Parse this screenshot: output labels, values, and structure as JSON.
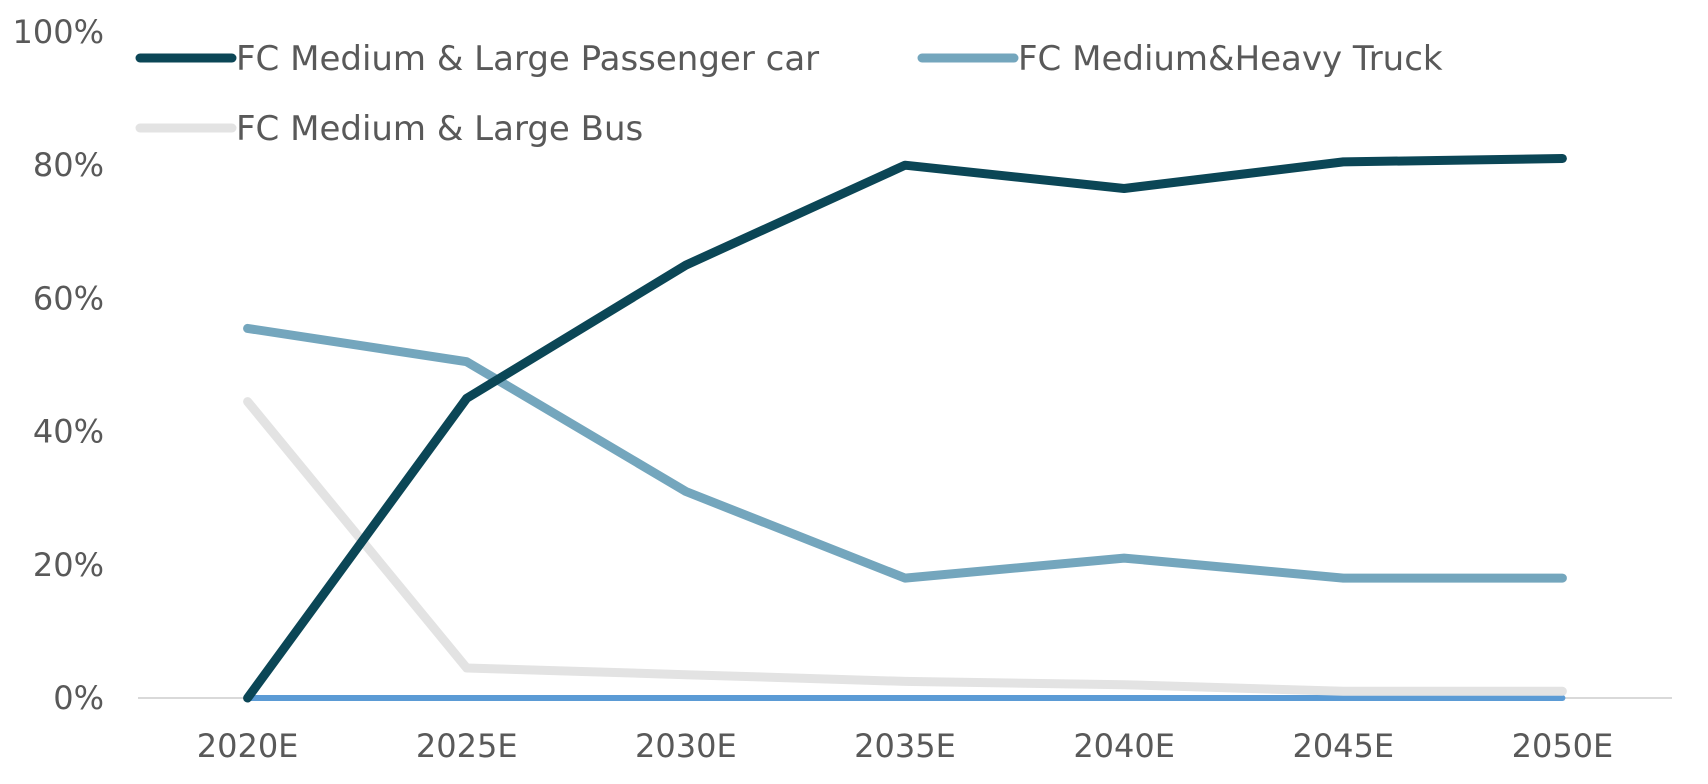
{
  "chart_data": {
    "type": "line",
    "categories": [
      "2020E",
      "2025E",
      "2030E",
      "2035E",
      "2040E",
      "2045E",
      "2050E"
    ],
    "series": [
      {
        "name": "FC Medium & Large Passenger car",
        "values": [
          0,
          45,
          65,
          80,
          76.5,
          80.5,
          81
        ],
        "color": "#0b4656"
      },
      {
        "name": "FC Medium&Heavy Truck",
        "values": [
          55.5,
          50.5,
          31,
          18,
          21,
          18,
          18
        ],
        "color": "#74a6bd"
      },
      {
        "name": "FC Medium & Large Bus",
        "values": [
          44.5,
          4.5,
          3.5,
          2.5,
          2,
          1,
          1
        ],
        "color": "#e3e3e3"
      },
      {
        "values": [
          0,
          0,
          0,
          0,
          0,
          0,
          0
        ],
        "color": "#5b9bd5"
      }
    ],
    "y_ticks": [
      "0%",
      "20%",
      "40%",
      "60%",
      "80%",
      "100%"
    ],
    "ylim": [
      0,
      100
    ],
    "grid": false,
    "legend_position": "top-left"
  }
}
